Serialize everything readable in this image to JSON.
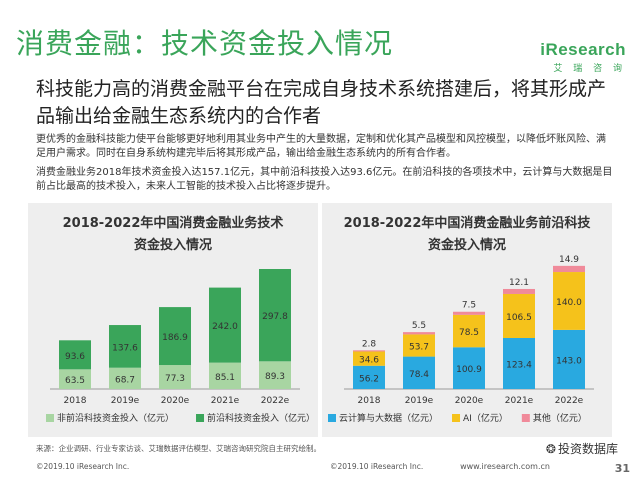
{
  "page_title": "消费金融：技术资金投入情况",
  "logo": {
    "brand": "iResearch",
    "sub": "艾 瑞 咨 询"
  },
  "headline": "科技能力高的消费金融平台在完成自身技术系统搭建后，将其形成产品输出给金融生态系统内的合作者",
  "paragraph1": "更优秀的金融科技能力使平台能够更好地利用其业务中产生的大量数据，定制和优化其产品模型和风控模型，以降低坏账风险、满足用户需求。同时在自身系统构建完毕后将其形成产品，输出给金融生态系统内的所有合作者。",
  "paragraph2": "消费金融业务2018年技术资金投入达157.1亿元，其中前沿科技投入达93.6亿元。在前沿科技的各项技术中，云计算与大数据是目前占比最高的技术投入，未来人工智能的技术投入占比将逐步提升。",
  "source": "来源：企业调研、行业专家访谈、艾瑞数据评估模型、艾瑞咨询研究院自主研究绘制。",
  "copyright_left": "©2019.10 iResearch Inc.",
  "copyright_mid": "©2019.10 iResearch Inc.",
  "website": "www.iresearch.com.cn",
  "watermark": "投资数据库",
  "page_number": "31",
  "colors": {
    "green_dark": "#3aa55a",
    "green_light": "#a8d5a2",
    "blue": "#29a9e0",
    "yellow": "#f5c21b",
    "pink": "#f08a9a"
  },
  "chart_data": [
    {
      "type": "bar",
      "stacked": true,
      "title_lines": [
        "2018-2022年中国消费金融业务技术",
        "资金投入情况"
      ],
      "categories": [
        "2018",
        "2019e",
        "2020e",
        "2021e",
        "2022e"
      ],
      "series": [
        {
          "name": "非前沿科技资金投入（亿元）",
          "values": [
            63.5,
            68.7,
            77.3,
            85.1,
            89.3
          ],
          "color": "#a8d5a2"
        },
        {
          "name": "前沿科技资金投入（亿元）",
          "values": [
            93.6,
            137.6,
            186.9,
            242.0,
            297.8
          ],
          "color": "#3aa55a"
        }
      ],
      "ylim": [
        0,
        400
      ],
      "legend_position": "bottom",
      "grid": false
    },
    {
      "type": "bar",
      "stacked": true,
      "title_lines": [
        "2018-2022年中国消费金融业务前沿科技",
        "资金投入情况"
      ],
      "categories": [
        "2018",
        "2019e",
        "2020e",
        "2021e",
        "2022e"
      ],
      "series": [
        {
          "name": "云计算与大数据（亿元）",
          "values": [
            56.2,
            78.4,
            100.9,
            123.4,
            143.0
          ],
          "color": "#29a9e0"
        },
        {
          "name": "AI（亿元）",
          "values": [
            34.6,
            53.7,
            78.5,
            106.5,
            140.0
          ],
          "color": "#f5c21b"
        },
        {
          "name": "其他（亿元）",
          "values": [
            2.8,
            5.5,
            7.5,
            12.1,
            14.9
          ],
          "color": "#f08a9a"
        }
      ],
      "ylim": [
        0,
        300
      ],
      "legend_position": "bottom",
      "grid": false
    }
  ]
}
